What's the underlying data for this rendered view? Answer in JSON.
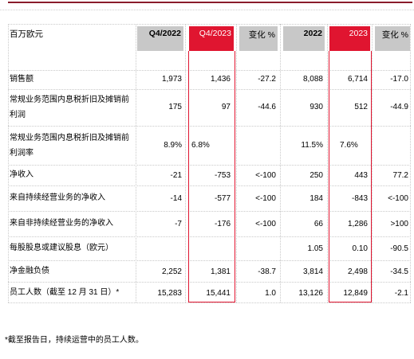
{
  "table": {
    "headers": {
      "label": "百万欧元",
      "q4_2022": "Q4/2022",
      "q4_2023": "Q4/2023",
      "change_q": "变化 %",
      "y2022": "2022",
      "y2023": "2023",
      "change_y": "变化 %"
    },
    "rows": [
      {
        "label": "销售额",
        "q4_2022": "1,973",
        "q4_2023": "1,436",
        "change_q": "-27.2",
        "y2022": "8,088",
        "y2023": "6,714",
        "change_y": "-17.0"
      },
      {
        "label": "常规业务范围内息税折旧及摊销前利润",
        "q4_2022": "175",
        "q4_2023": "97",
        "change_q": "-44.6",
        "y2022": "930",
        "y2023": "512",
        "change_y": "-44.9"
      },
      {
        "label": "常规业务范围内息税折旧及摊销前利润率",
        "q4_2022": "8.9%",
        "q4_2023": "6.8%",
        "change_q": "",
        "y2022": "11.5%",
        "y2023": "7.6%",
        "change_y": ""
      },
      {
        "label": "净收入",
        "q4_2022": "-21",
        "q4_2023": "-753",
        "change_q": "<-100",
        "y2022": "250",
        "y2023": "443",
        "change_y": "77.2"
      },
      {
        "label": "来自持续经营业务的净收入",
        "q4_2022": "-14",
        "q4_2023": "-577",
        "change_q": "<-100",
        "y2022": "184",
        "y2023": "-843",
        "change_y": "<-100"
      },
      {
        "label": "来自非持续经营业务的净收入",
        "q4_2022": "-7",
        "q4_2023": "-176",
        "change_q": "<-100",
        "y2022": "66",
        "y2023": "1,286",
        "change_y": ">100"
      },
      {
        "label": "每股股息或建议股息（欧元）",
        "q4_2022": "",
        "q4_2023": "",
        "change_q": "",
        "y2022": "1.05",
        "y2023": "0.10",
        "change_y": "-90.5"
      },
      {
        "label": "净金融负债",
        "q4_2022": "2,252",
        "q4_2023": "1,381",
        "change_q": "-38.7",
        "y2022": "3,814",
        "y2023": "2,498",
        "change_y": "-34.5"
      },
      {
        "label": "员工人数（截至 12 月 31 日）*",
        "q4_2022": "15,283",
        "q4_2023": "15,441",
        "change_q": "1.0",
        "y2022": "13,126",
        "y2023": "12,849",
        "change_y": "-2.1"
      }
    ]
  },
  "footnote": "*截至报告日，持续运营中的员工人数。",
  "colors": {
    "highlight": "#e01530",
    "header_gray": "#c8c8c8",
    "top_rule": "#8a1c2b"
  }
}
